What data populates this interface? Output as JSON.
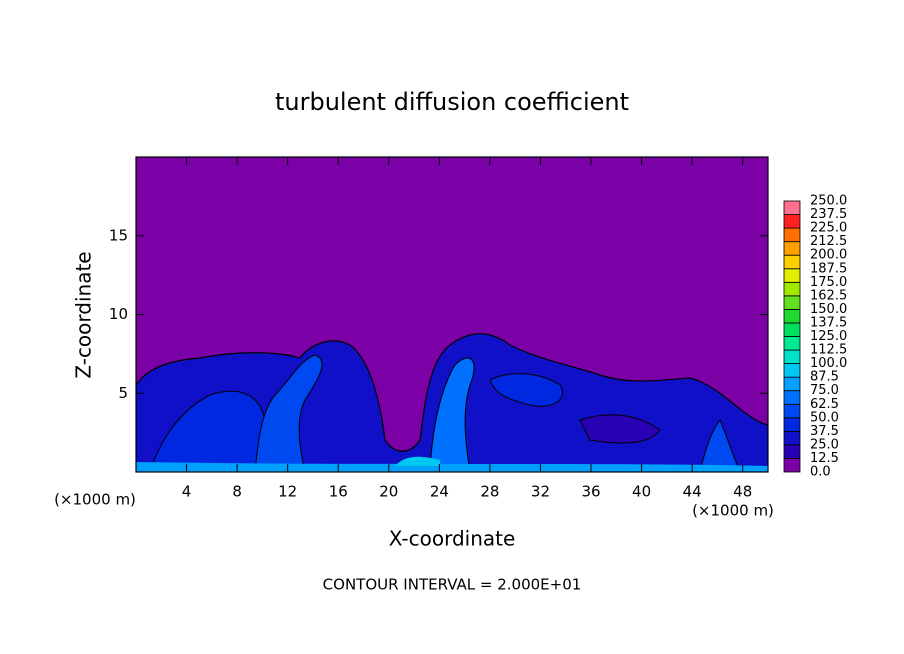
{
  "chart_data": {
    "type": "contour",
    "title": "turbulent diffusion coefficient",
    "xlabel": "X-coordinate",
    "ylabel": "Z-coordinate",
    "axis_unit": "(×1000 m)",
    "annotation": "CONTOUR INTERVAL = 2.000E+01",
    "xlim": [
      0,
      50
    ],
    "ylim": [
      0,
      20
    ],
    "xticks": [
      4,
      8,
      12,
      16,
      20,
      24,
      28,
      32,
      36,
      40,
      44,
      48
    ],
    "yticks": [
      5,
      10,
      15
    ],
    "colorbar": {
      "levels": [
        {
          "value": 0,
          "label": "0.0"
        },
        12.5,
        {
          "value": 25,
          "label": "25.0"
        },
        37.5,
        {
          "value": 50,
          "label": "50.0"
        },
        62.5,
        {
          "value": 75,
          "label": "75.0"
        },
        87.5,
        {
          "value": 100,
          "label": "100.0"
        },
        112.5,
        {
          "value": 125,
          "label": "125.0"
        },
        137.5,
        {
          "value": 150,
          "label": "150.0"
        },
        162.5,
        {
          "value": 175,
          "label": "175.0"
        },
        187.5,
        {
          "value": 200,
          "label": "200.0"
        },
        212.5,
        {
          "value": 225,
          "label": "225.0"
        },
        237.5,
        {
          "value": 250,
          "label": "250.0"
        }
      ],
      "colors": [
        "#7b00a6",
        "#2a00b5",
        "#1010c8",
        "#0028e0",
        "#0048f0",
        "#0070ff",
        "#00a0ff",
        "#00c8f0",
        "#00e0c8",
        "#00e890",
        "#00e060",
        "#20d830",
        "#60e020",
        "#a0e800",
        "#e0f000",
        "#ffd000",
        "#ffa000",
        "#ff7000",
        "#ff2020",
        "#ff7090"
      ]
    }
  }
}
